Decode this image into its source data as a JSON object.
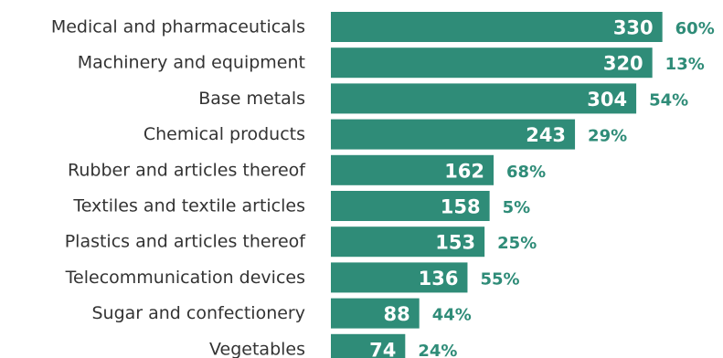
{
  "chart_data": {
    "type": "bar",
    "orientation": "horizontal",
    "categories": [
      "Medical and pharmaceuticals",
      "Machinery and equipment",
      "Base metals",
      "Chemical products",
      "Rubber and articles thereof",
      "Textiles and textile articles",
      "Plastics and articles thereof",
      "Telecommunication devices",
      "Sugar and confectionery",
      "Vegetables"
    ],
    "values": [
      330,
      320,
      304,
      243,
      162,
      158,
      153,
      136,
      88,
      74
    ],
    "value_labels": [
      "330",
      "320",
      "304",
      "243",
      "162",
      "158",
      "153",
      "136",
      "88",
      "74"
    ],
    "secondary_labels": [
      "60%",
      "13%",
      "54%",
      "29%",
      "68%",
      "5%",
      "25%",
      "55%",
      "44%",
      "24%"
    ],
    "title": "",
    "xlabel": "",
    "ylabel": "",
    "grid": false,
    "legend": "none",
    "colors": {
      "bar": "#2f8c78",
      "value_text": "#ffffff",
      "percent_text": "#2f8c78",
      "category_text": "#333333"
    }
  }
}
